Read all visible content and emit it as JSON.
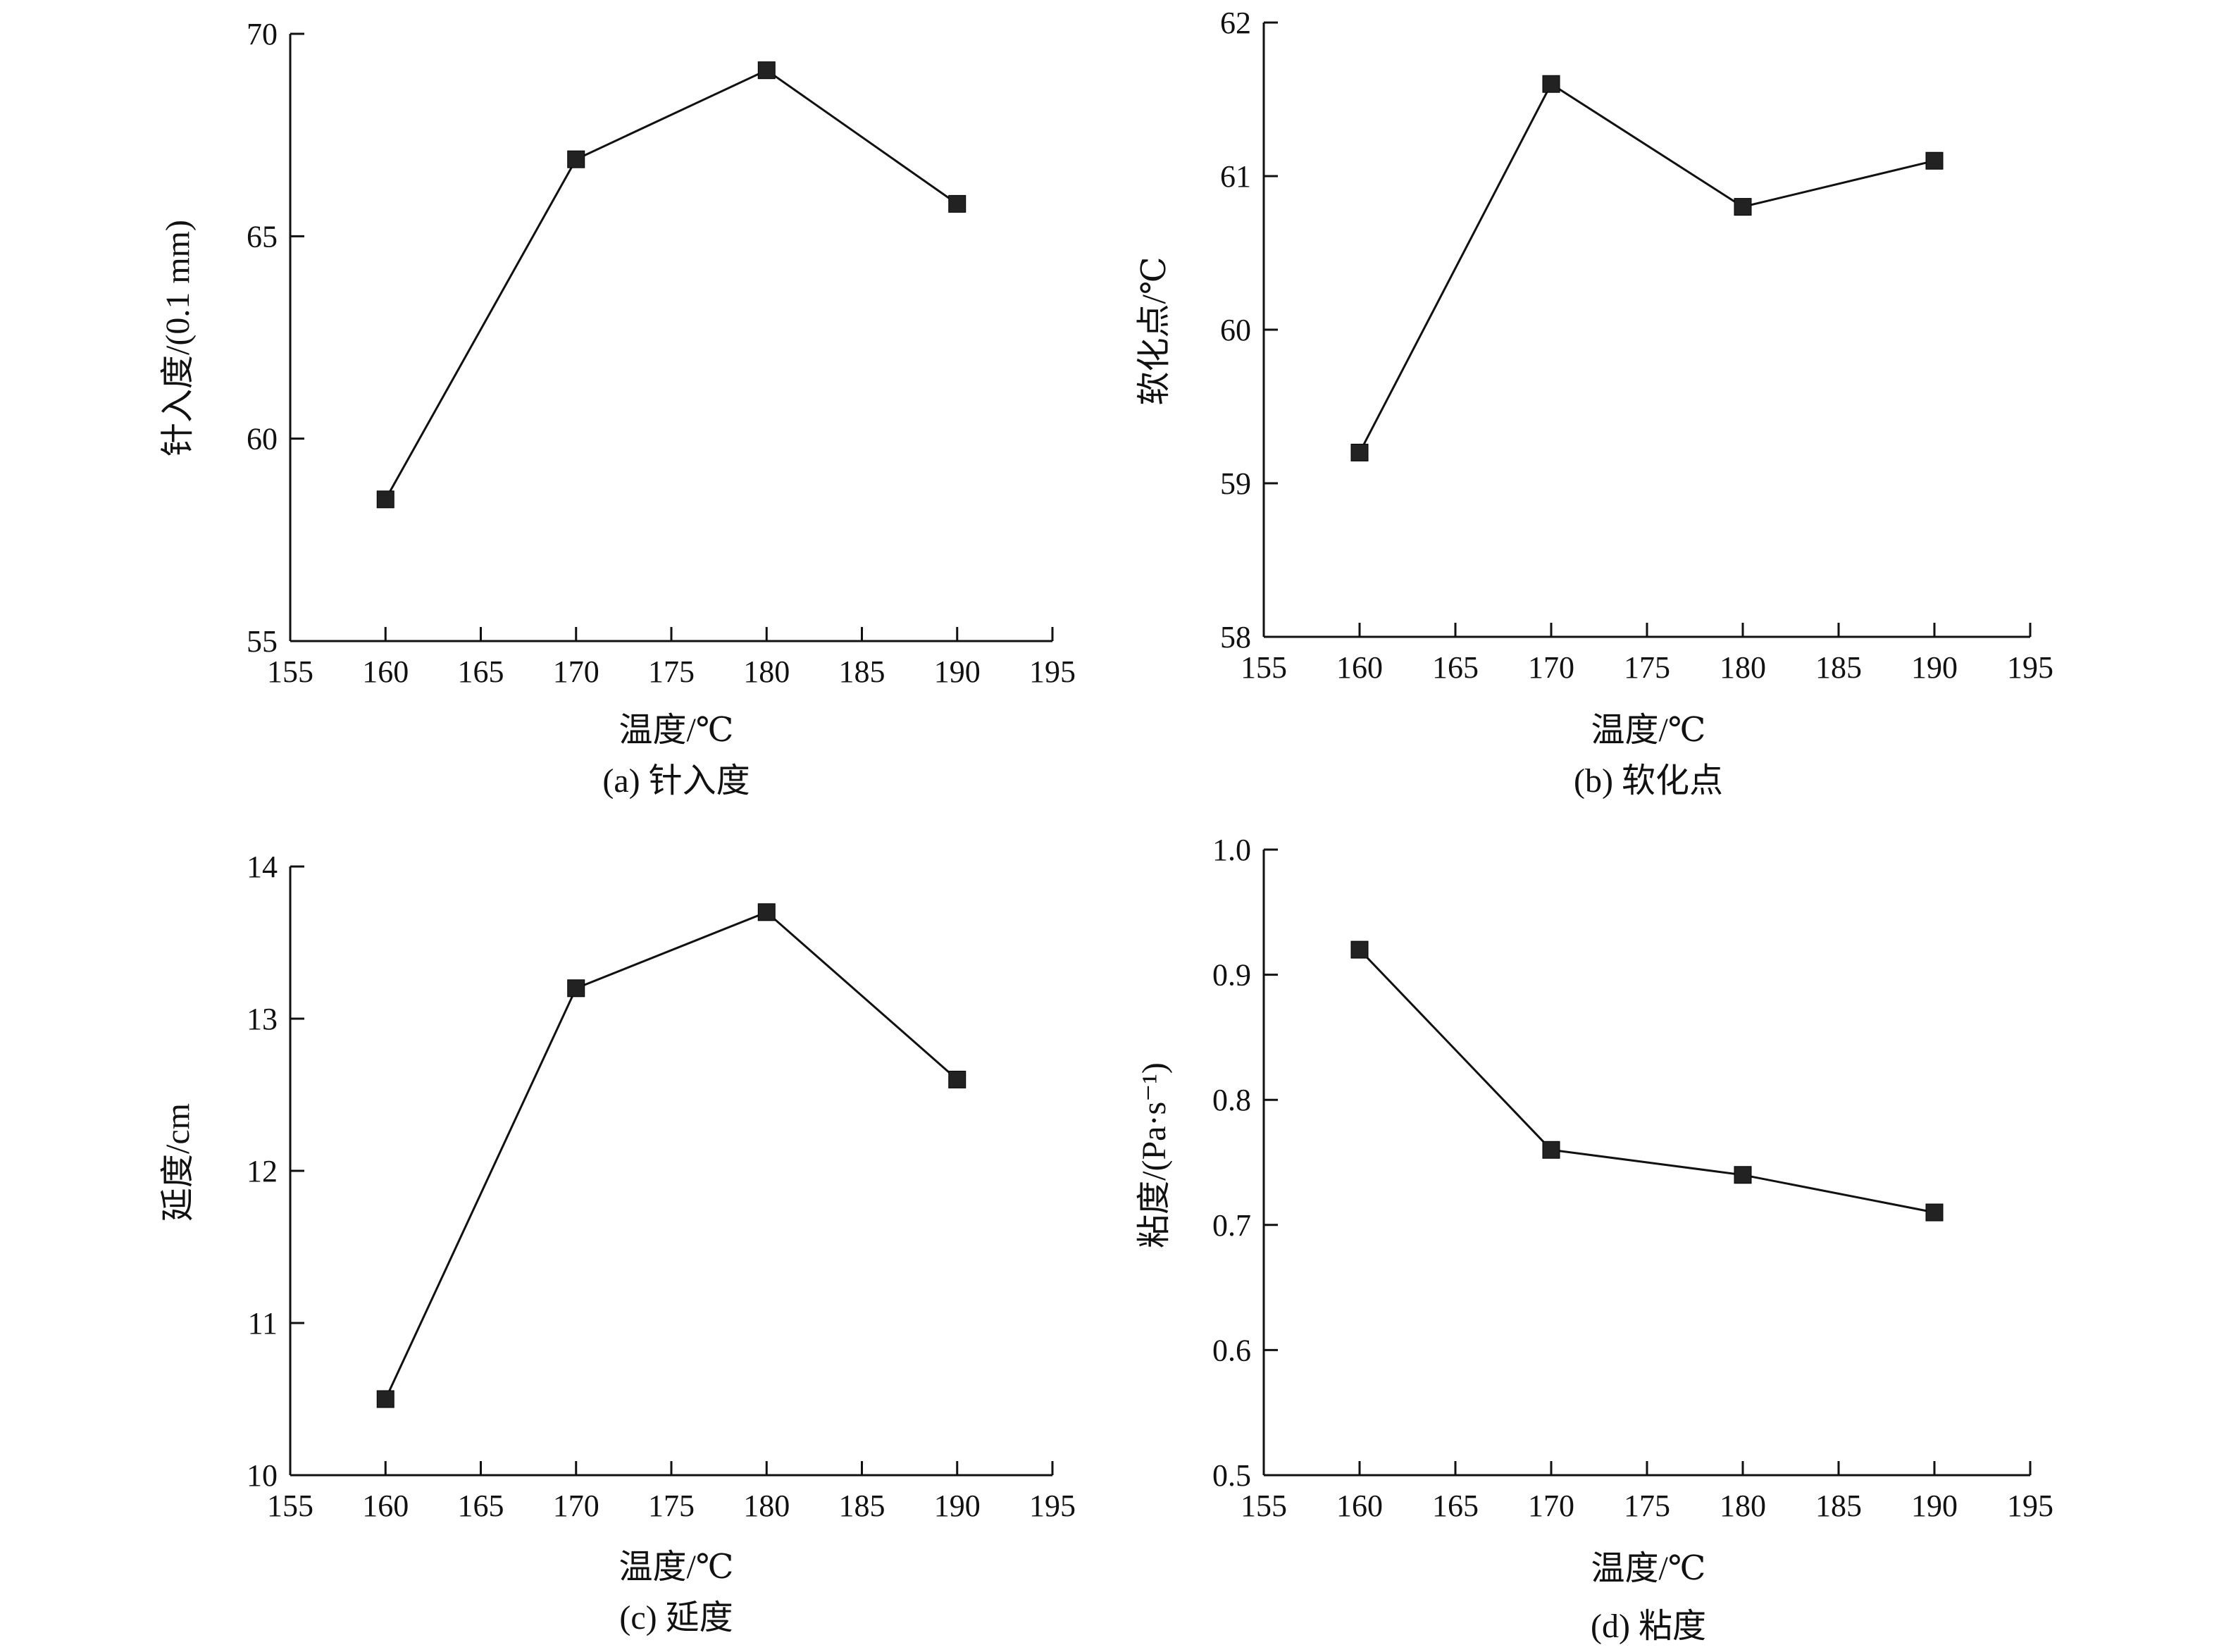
{
  "chart_data": [
    {
      "type": "line",
      "caption": "(a) 针入度",
      "xlabel": "温度/℃",
      "ylabel": "针入度/(0.1 mm)",
      "xlim": [
        155,
        195
      ],
      "ylim": [
        55,
        70
      ],
      "xticks": [
        155,
        160,
        165,
        170,
        175,
        180,
        185,
        190,
        195
      ],
      "yticks": [
        55,
        60,
        65,
        70
      ],
      "x": [
        160,
        170,
        180,
        190
      ],
      "series": [
        {
          "values": [
            58.5,
            66.9,
            69.1,
            65.8
          ]
        }
      ],
      "grid": false,
      "marker": "square"
    },
    {
      "type": "line",
      "caption": "(b) 软化点",
      "xlabel": "温度/℃",
      "ylabel": "软化点/℃",
      "xlim": [
        155,
        195
      ],
      "ylim": [
        58,
        62
      ],
      "xticks": [
        155,
        160,
        165,
        170,
        175,
        180,
        185,
        190,
        195
      ],
      "yticks": [
        58,
        59,
        60,
        61,
        62
      ],
      "x": [
        160,
        170,
        180,
        190
      ],
      "series": [
        {
          "values": [
            59.2,
            61.6,
            60.8,
            61.1
          ]
        }
      ],
      "grid": false,
      "marker": "square"
    },
    {
      "type": "line",
      "caption": "(c) 延度",
      "xlabel": "温度/℃",
      "ylabel": "延度/cm",
      "xlim": [
        155,
        195
      ],
      "ylim": [
        10,
        14
      ],
      "xticks": [
        155,
        160,
        165,
        170,
        175,
        180,
        185,
        190,
        195
      ],
      "yticks": [
        10,
        11,
        12,
        13,
        14
      ],
      "x": [
        160,
        170,
        180,
        190
      ],
      "series": [
        {
          "values": [
            10.5,
            13.2,
            13.7,
            12.6
          ]
        }
      ],
      "grid": false,
      "marker": "square"
    },
    {
      "type": "line",
      "caption": "(d) 粘度",
      "xlabel": "温度/℃",
      "ylabel": "粘度/(Pa·s⁻¹)",
      "xlim": [
        155,
        195
      ],
      "ylim": [
        0.5,
        1.0
      ],
      "xticks": [
        155,
        160,
        165,
        170,
        175,
        180,
        185,
        190,
        195
      ],
      "yticks": [
        0.5,
        0.6,
        0.7,
        0.8,
        0.9,
        1.0
      ],
      "x": [
        160,
        170,
        180,
        190
      ],
      "series": [
        {
          "values": [
            0.92,
            0.76,
            0.74,
            0.71
          ]
        }
      ],
      "grid": false,
      "marker": "square"
    }
  ]
}
